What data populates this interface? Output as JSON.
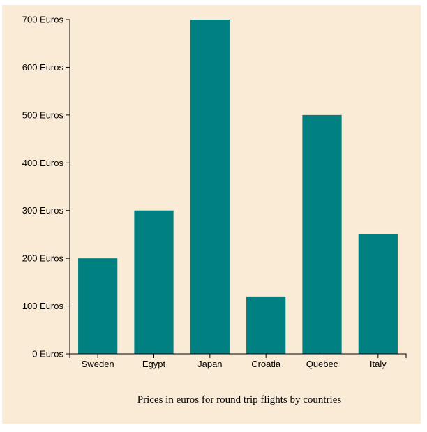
{
  "chart_data": {
    "type": "bar",
    "categories": [
      "Sweden",
      "Egypt",
      "Japan",
      "Croatia",
      "Quebec",
      "Italy"
    ],
    "values": [
      200,
      300,
      700,
      120,
      500,
      250
    ],
    "ylim": [
      0,
      700
    ],
    "yticks": [
      0,
      100,
      200,
      300,
      400,
      500,
      600,
      700
    ],
    "ytick_suffix": " Euros",
    "xlabel": "Prices in euros for round trip flights by countries",
    "ylabel": "",
    "title": "",
    "grid": false,
    "legend": "none",
    "bar_color": "#008080",
    "background_color": "#faebd7"
  }
}
